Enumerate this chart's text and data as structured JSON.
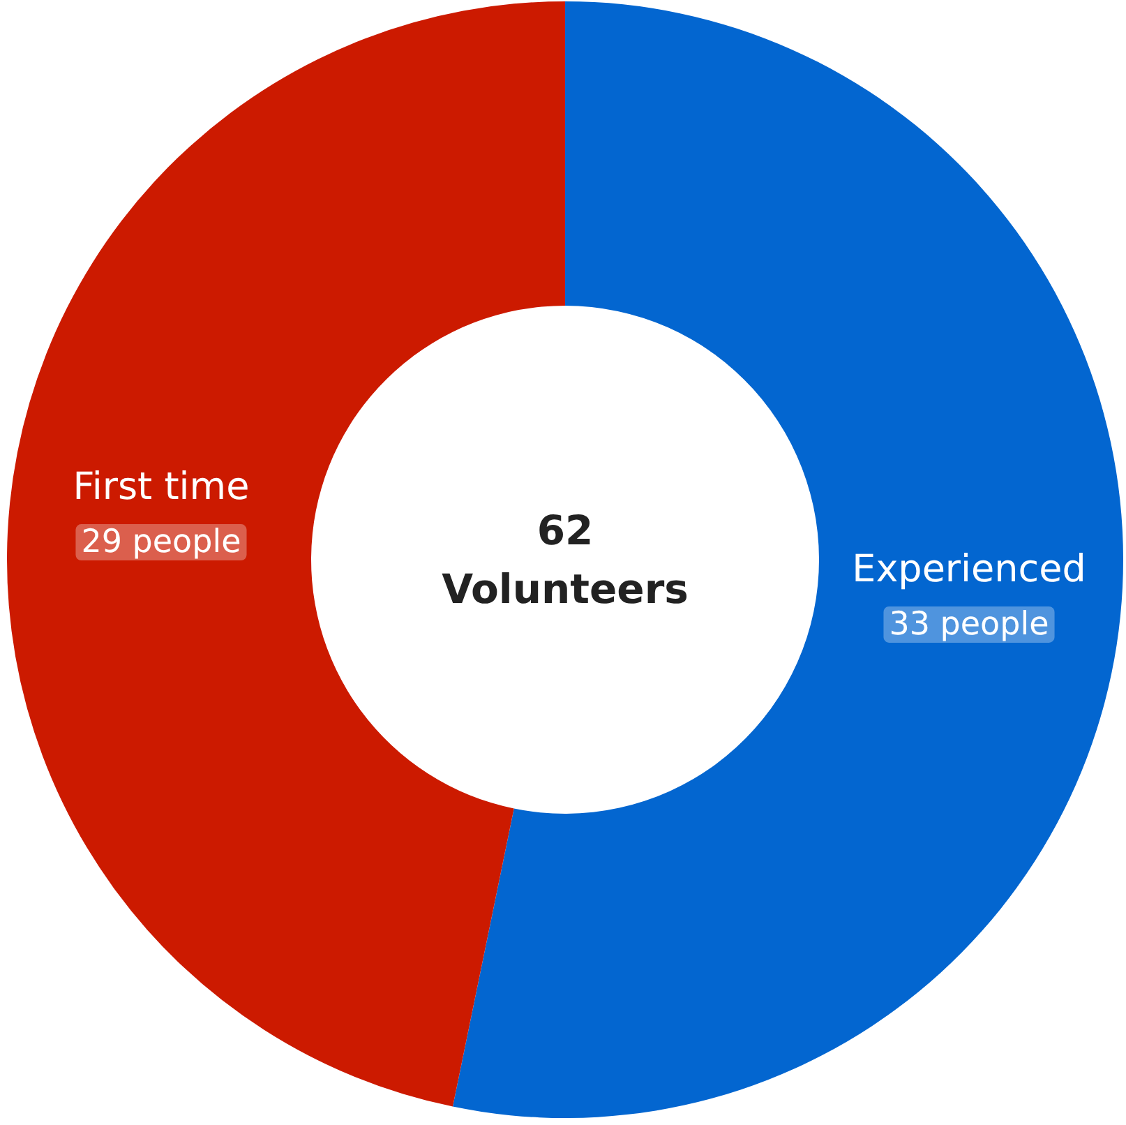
{
  "chart_data": {
    "type": "donut",
    "categories": [
      "Experienced",
      "First time"
    ],
    "values": [
      33,
      29
    ],
    "colors": [
      "#0366d0",
      "#cc1a00"
    ],
    "value_labels": [
      "33 people",
      "29 people"
    ],
    "annotations": [
      "62",
      "Volunteers"
    ]
  }
}
